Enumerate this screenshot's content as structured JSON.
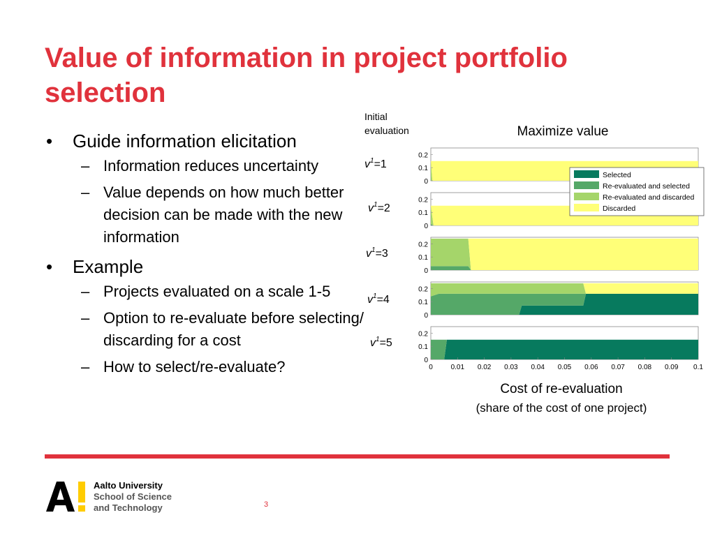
{
  "slide": {
    "title": "Value of information in project portfolio selection",
    "page_number": "3"
  },
  "bullets": [
    {
      "text": "Guide information elicitation",
      "sub": [
        "Information reduces uncertainty",
        "Value depends on how much better decision can be made with the new information"
      ]
    },
    {
      "text": "Example",
      "sub": [
        "Projects evaluated on a scale 1-5",
        "Option to re-evaluate before selecting/ discarding for a cost",
        "How to select/re-evaluate?"
      ]
    }
  ],
  "logo": {
    "line1": "Aalto University",
    "line2": "School of Science",
    "line3": "and Technology",
    "mark": "A!"
  },
  "colors": {
    "accent_red": "#e0323c",
    "selected": "#077a5e",
    "reeval_selected": "#55a868",
    "reeval_discarded": "#a5d56a",
    "discarded": "#ffff78",
    "logo_yellow": "#ffcc00"
  },
  "chart_data": {
    "type": "area",
    "title": "Maximize value",
    "row_header": "Initial evaluation",
    "xlabel": "Cost of re-evaluation",
    "xlabel2": "(share of the cost of one project)",
    "xlim": [
      0,
      0.1
    ],
    "ylim": [
      0,
      0.25
    ],
    "x_ticks": [
      "0",
      "0.01",
      "0.02",
      "0.03",
      "0.04",
      "0.05",
      "0.06",
      "0.07",
      "0.08",
      "0.09",
      "0.1"
    ],
    "y_ticks": [
      "0.2",
      "0.1",
      "0"
    ],
    "legend": [
      "Selected",
      "Re-evaluated and selected",
      "Re-evaluated and discarded",
      "Discarded"
    ],
    "legend_position": "top-right",
    "stacked_series": [
      "Selected",
      "Re-evaluated and selected",
      "Re-evaluated and discarded",
      "Discarded"
    ],
    "panels": [
      {
        "label": "=1",
        "x": [
          0,
          0.0006,
          0.1
        ],
        "Selected": [
          0,
          0,
          0
        ],
        "Re-evaluated and selected": [
          0,
          0,
          0
        ],
        "Re-evaluated and discarded": [
          0.15,
          0,
          0
        ],
        "Discarded": [
          0,
          0.15,
          0.15
        ]
      },
      {
        "label": "=2",
        "x": [
          0,
          0.001,
          0.1
        ],
        "Selected": [
          0,
          0,
          0
        ],
        "Re-evaluated and selected": [
          0.01,
          0,
          0
        ],
        "Re-evaluated and discarded": [
          0.14,
          0,
          0
        ],
        "Discarded": [
          0,
          0.15,
          0.15
        ]
      },
      {
        "label": "=3",
        "x": [
          0,
          0.014,
          0.015,
          0.1
        ],
        "Selected": [
          0,
          0,
          0,
          0
        ],
        "Re-evaluated and selected": [
          0.03,
          0.03,
          0,
          0
        ],
        "Re-evaluated and discarded": [
          0.21,
          0.21,
          0,
          0
        ],
        "Discarded": [
          0,
          0,
          0.24,
          0.24
        ]
      },
      {
        "label": "=4",
        "x": [
          0,
          0.003,
          0.033,
          0.034,
          0.057,
          0.058,
          0.1
        ],
        "Selected": [
          0,
          0,
          0,
          0.07,
          0.07,
          0.16,
          0.16
        ],
        "Re-evaluated and selected": [
          0.14,
          0.16,
          0.16,
          0.09,
          0.09,
          0,
          0
        ],
        "Re-evaluated and discarded": [
          0.1,
          0.08,
          0.08,
          0.08,
          0.08,
          0,
          0
        ],
        "Discarded": [
          0,
          0,
          0,
          0,
          0,
          0.08,
          0.08
        ]
      },
      {
        "label": "=5",
        "x": [
          0,
          0.005,
          0.006,
          0.1
        ],
        "Selected": [
          0,
          0,
          0.15,
          0.15
        ],
        "Re-evaluated and selected": [
          0.15,
          0.15,
          0,
          0
        ],
        "Re-evaluated and discarded": [
          0,
          0,
          0,
          0
        ],
        "Discarded": [
          0,
          0,
          0,
          0
        ]
      }
    ]
  }
}
